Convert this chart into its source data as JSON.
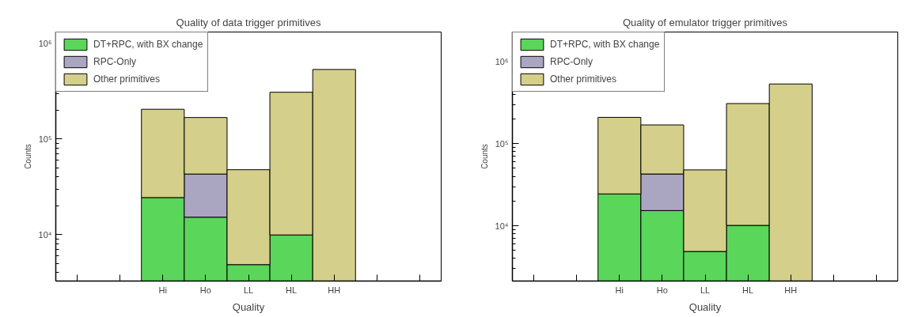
{
  "chart_data": [
    {
      "type": "bar",
      "title": "Quality of data trigger primitives",
      "xlabel": "Quality",
      "ylabel": "Counts",
      "categories": [
        null,
        null,
        "Hi",
        "Ho",
        "LL",
        "HL",
        "HH",
        null,
        null
      ],
      "stacked": true,
      "log": true,
      "legend": "top left",
      "grid": false,
      "ylim": [
        3260,
        1320000
      ],
      "yticks": [
        {
          "value": 10000,
          "label": "10⁴"
        },
        {
          "value": 100000,
          "label": "10⁵"
        },
        {
          "value": 1000000,
          "label": "10⁶"
        }
      ],
      "series": [
        {
          "name": "DT+RPC, with BX change",
          "color": "#5ad65a",
          "values": [
            null,
            null,
            24400,
            15200,
            4840,
            9900,
            null,
            null,
            null
          ]
        },
        {
          "name": "RPC-Only",
          "color": "#aaa6c2",
          "values": [
            null,
            null,
            null,
            27800,
            null,
            null,
            null,
            null,
            null
          ]
        },
        {
          "name": "Other primitives",
          "color": "#d4cf8a",
          "values": [
            null,
            null,
            180600,
            125000,
            42900,
            299000,
            535000,
            null,
            null
          ]
        }
      ]
    },
    {
      "type": "bar",
      "title": "Quality of emulator trigger primitives",
      "xlabel": "Quality",
      "ylabel": "Counts",
      "categories": [
        null,
        null,
        "Hi",
        "Ho",
        "LL",
        "HL",
        "HH",
        null,
        null
      ],
      "stacked": true,
      "log": true,
      "legend": "top left",
      "grid": false,
      "ylim": [
        2120,
        2290000
      ],
      "yticks": [
        {
          "value": 10000,
          "label": "10⁴"
        },
        {
          "value": 100000,
          "label": "10⁵"
        },
        {
          "value": 1000000,
          "label": "10⁶"
        }
      ],
      "series": [
        {
          "name": "DT+RPC, with BX change",
          "color": "#5ad65a",
          "values": [
            null,
            null,
            24400,
            15300,
            4860,
            10100,
            null,
            null,
            null
          ]
        },
        {
          "name": "RPC-Only",
          "color": "#aaa6c2",
          "values": [
            null,
            null,
            null,
            27400,
            null,
            null,
            null,
            null,
            null
          ]
        },
        {
          "name": "Other primitives",
          "color": "#d4cf8a",
          "values": [
            null,
            null,
            184600,
            126300,
            43040,
            297900,
            533000,
            null,
            null
          ]
        }
      ]
    }
  ]
}
